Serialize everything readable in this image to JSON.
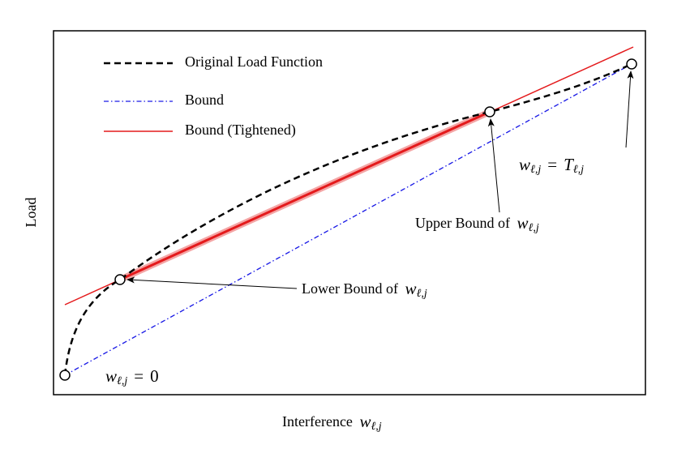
{
  "axes": {
    "x_label": {
      "text": "Interference",
      "var": "w",
      "sub": "ℓ,j"
    },
    "y_label": "Load"
  },
  "legend": [
    "Original Load Function",
    "Bound",
    "Bound (Tightened)"
  ],
  "annotations": {
    "lower": {
      "text": "Lower Bound of",
      "var": "w",
      "sub": "ℓ,j"
    },
    "upper": {
      "text": "Upper Bound of",
      "var": "w",
      "sub": "ℓ,j"
    },
    "end": {
      "var": "w",
      "sub": "ℓ,j",
      "rel": "=",
      "rhs": "T",
      "rhs_sub": "ℓ,j"
    },
    "start": {
      "var": "w",
      "sub": "ℓ,j",
      "rel": "=",
      "rhs": "0"
    }
  }
}
